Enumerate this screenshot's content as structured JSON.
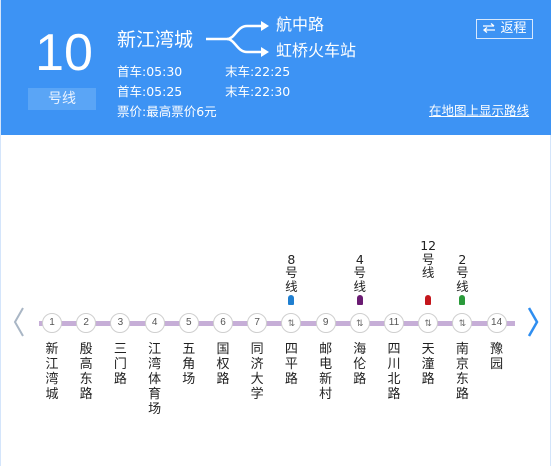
{
  "header": {
    "line_number": "10",
    "line_unit": "号线",
    "start_station": "新江湾城",
    "branches": [
      "航中路",
      "虹桥火车站"
    ],
    "schedules": [
      {
        "first_label": "首车:",
        "first_time": "05:30",
        "last_label": "末车:",
        "last_time": "22:25"
      },
      {
        "first_label": "首车:",
        "first_time": "05:25",
        "last_label": "末车:",
        "last_time": "22:30"
      }
    ],
    "fare": "票价:最高票价6元",
    "return_label": "返程",
    "return_icon": "swap-arrows-icon",
    "map_link": "在地图上显示路线"
  },
  "route": {
    "line_color": "#c6aed7",
    "prev_icon": "chevron-left-icon",
    "next_icon": "chevron-right-icon",
    "stations": [
      {
        "num": "1",
        "name": "新江湾城"
      },
      {
        "num": "2",
        "name": "殷高东路"
      },
      {
        "num": "3",
        "name": "三门路"
      },
      {
        "num": "4",
        "name": "江湾体育场"
      },
      {
        "num": "5",
        "name": "五角场"
      },
      {
        "num": "6",
        "name": "国权路"
      },
      {
        "num": "7",
        "name": "同济大学"
      },
      {
        "num": "⇅",
        "name": "四平路",
        "transfer": {
          "label": "8号线",
          "color": "#1f7fd0"
        }
      },
      {
        "num": "9",
        "name": "邮电新村"
      },
      {
        "num": "⇅",
        "name": "海伦路",
        "transfer": {
          "label": "4号线",
          "color": "#6a1b72"
        }
      },
      {
        "num": "11",
        "name": "四川北路"
      },
      {
        "num": "⇅",
        "name": "天潼路",
        "transfer": {
          "label": "12号线",
          "color": "#c4161c"
        }
      },
      {
        "num": "⇅",
        "name": "南京东路",
        "transfer": {
          "label": "2号线",
          "color": "#2a9a3a"
        }
      },
      {
        "num": "14",
        "name": "豫园"
      }
    ]
  }
}
